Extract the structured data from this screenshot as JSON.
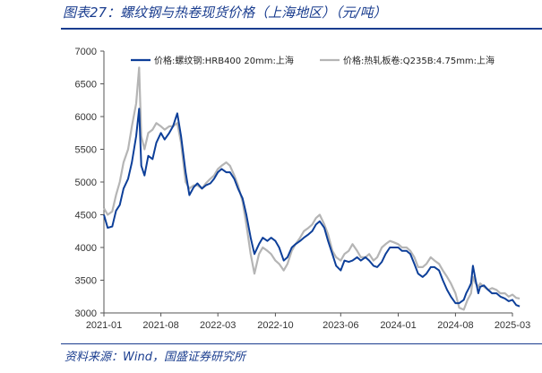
{
  "figure": {
    "title": "图表27：螺纹钢与热卷现货价格（上海地区）（元/吨）",
    "source": "资料来源：Wind，国盛证券研究所"
  },
  "chart_data": {
    "type": "line",
    "title": "图表27：螺纹钢与热卷现货价格（上海地区）（元/吨）",
    "xlabel": "",
    "ylabel": "",
    "ylim": [
      3000,
      7000
    ],
    "yticks": [
      3000,
      3500,
      4000,
      4500,
      5000,
      5500,
      6000,
      6500,
      7000
    ],
    "xticks": [
      "2021-01",
      "2021-08",
      "2022-03",
      "2022-10",
      "2023-06",
      "2024-01",
      "2024-08",
      "2025-03"
    ],
    "legend_position": "top",
    "grid": false,
    "series": [
      {
        "name": "价格:螺纹钢:HRB400 20mm:上海",
        "color": "#0d3f99",
        "points": [
          [
            "2021-01-01",
            4500
          ],
          [
            "2021-01-15",
            4300
          ],
          [
            "2021-02-01",
            4320
          ],
          [
            "2021-02-15",
            4560
          ],
          [
            "2021-03-01",
            4650
          ],
          [
            "2021-03-15",
            4900
          ],
          [
            "2021-04-01",
            5050
          ],
          [
            "2021-04-15",
            5300
          ],
          [
            "2021-05-01",
            5700
          ],
          [
            "2021-05-12",
            6120
          ],
          [
            "2021-05-20",
            5250
          ],
          [
            "2021-06-01",
            5100
          ],
          [
            "2021-06-15",
            5400
          ],
          [
            "2021-07-01",
            5350
          ],
          [
            "2021-07-15",
            5600
          ],
          [
            "2021-08-01",
            5750
          ],
          [
            "2021-08-15",
            5650
          ],
          [
            "2021-09-01",
            5750
          ],
          [
            "2021-09-15",
            5850
          ],
          [
            "2021-10-01",
            6050
          ],
          [
            "2021-10-15",
            5700
          ],
          [
            "2021-11-01",
            5150
          ],
          [
            "2021-11-15",
            4800
          ],
          [
            "2021-12-01",
            4920
          ],
          [
            "2021-12-15",
            4980
          ],
          [
            "2022-01-01",
            4900
          ],
          [
            "2022-01-15",
            4950
          ],
          [
            "2022-02-01",
            4980
          ],
          [
            "2022-02-15",
            5050
          ],
          [
            "2022-03-01",
            5150
          ],
          [
            "2022-03-15",
            5200
          ],
          [
            "2022-04-01",
            5150
          ],
          [
            "2022-04-15",
            5150
          ],
          [
            "2022-05-01",
            5050
          ],
          [
            "2022-05-15",
            4900
          ],
          [
            "2022-06-01",
            4750
          ],
          [
            "2022-06-15",
            4500
          ],
          [
            "2022-07-01",
            4150
          ],
          [
            "2022-07-15",
            3900
          ],
          [
            "2022-08-01",
            4050
          ],
          [
            "2022-08-15",
            4150
          ],
          [
            "2022-09-01",
            4100
          ],
          [
            "2022-09-15",
            4150
          ],
          [
            "2022-10-01",
            4100
          ],
          [
            "2022-10-15",
            4000
          ],
          [
            "2022-11-01",
            3800
          ],
          [
            "2022-11-15",
            3850
          ],
          [
            "2022-12-01",
            4000
          ],
          [
            "2022-12-15",
            4050
          ],
          [
            "2023-01-01",
            4100
          ],
          [
            "2023-01-15",
            4150
          ],
          [
            "2023-02-01",
            4200
          ],
          [
            "2023-02-15",
            4250
          ],
          [
            "2023-03-01",
            4350
          ],
          [
            "2023-03-15",
            4400
          ],
          [
            "2023-04-01",
            4300
          ],
          [
            "2023-04-15",
            4100
          ],
          [
            "2023-05-01",
            3900
          ],
          [
            "2023-05-15",
            3720
          ],
          [
            "2023-06-01",
            3650
          ],
          [
            "2023-06-15",
            3800
          ],
          [
            "2023-07-01",
            3780
          ],
          [
            "2023-07-15",
            3800
          ],
          [
            "2023-08-01",
            3850
          ],
          [
            "2023-08-15",
            3800
          ],
          [
            "2023-09-01",
            3850
          ],
          [
            "2023-09-15",
            3800
          ],
          [
            "2023-10-01",
            3720
          ],
          [
            "2023-10-15",
            3700
          ],
          [
            "2023-11-01",
            3780
          ],
          [
            "2023-11-15",
            3900
          ],
          [
            "2023-12-01",
            4000
          ],
          [
            "2023-12-15",
            4000
          ],
          [
            "2024-01-01",
            4000
          ],
          [
            "2024-01-15",
            3950
          ],
          [
            "2024-02-01",
            3950
          ],
          [
            "2024-02-15",
            3900
          ],
          [
            "2024-03-01",
            3750
          ],
          [
            "2024-03-15",
            3600
          ],
          [
            "2024-04-01",
            3550
          ],
          [
            "2024-04-15",
            3600
          ],
          [
            "2024-05-01",
            3700
          ],
          [
            "2024-05-15",
            3700
          ],
          [
            "2024-06-01",
            3650
          ],
          [
            "2024-06-15",
            3500
          ],
          [
            "2024-07-01",
            3350
          ],
          [
            "2024-07-15",
            3250
          ],
          [
            "2024-08-01",
            3150
          ],
          [
            "2024-08-15",
            3150
          ],
          [
            "2024-09-01",
            3200
          ],
          [
            "2024-09-10",
            3300
          ],
          [
            "2024-09-20",
            3380
          ],
          [
            "2024-09-28",
            3450
          ],
          [
            "2024-10-05",
            3720
          ],
          [
            "2024-10-15",
            3500
          ],
          [
            "2024-10-25",
            3300
          ],
          [
            "2024-11-01",
            3400
          ],
          [
            "2024-11-15",
            3420
          ],
          [
            "2024-12-01",
            3350
          ],
          [
            "2024-12-15",
            3300
          ],
          [
            "2025-01-01",
            3300
          ],
          [
            "2025-01-15",
            3250
          ],
          [
            "2025-02-01",
            3220
          ],
          [
            "2025-02-15",
            3180
          ],
          [
            "2025-03-01",
            3200
          ],
          [
            "2025-03-15",
            3120
          ],
          [
            "2025-03-28",
            3100
          ]
        ]
      },
      {
        "name": "价格:热轧板卷:Q235B:4.75mm:上海",
        "color": "#b5b5b5",
        "points": [
          [
            "2021-01-01",
            4600
          ],
          [
            "2021-01-15",
            4500
          ],
          [
            "2021-02-01",
            4550
          ],
          [
            "2021-02-15",
            4800
          ],
          [
            "2021-03-01",
            5000
          ],
          [
            "2021-03-15",
            5300
          ],
          [
            "2021-04-01",
            5500
          ],
          [
            "2021-04-15",
            5850
          ],
          [
            "2021-05-01",
            6200
          ],
          [
            "2021-05-12",
            6750
          ],
          [
            "2021-05-20",
            5700
          ],
          [
            "2021-06-01",
            5500
          ],
          [
            "2021-06-15",
            5750
          ],
          [
            "2021-07-01",
            5800
          ],
          [
            "2021-07-15",
            5900
          ],
          [
            "2021-08-01",
            5850
          ],
          [
            "2021-08-15",
            5800
          ],
          [
            "2021-09-01",
            5850
          ],
          [
            "2021-09-15",
            5850
          ],
          [
            "2021-10-01",
            5900
          ],
          [
            "2021-10-15",
            5600
          ],
          [
            "2021-11-01",
            5000
          ],
          [
            "2021-11-15",
            4900
          ],
          [
            "2021-12-01",
            4950
          ],
          [
            "2021-12-15",
            4950
          ],
          [
            "2022-01-01",
            4900
          ],
          [
            "2022-01-15",
            4980
          ],
          [
            "2022-02-01",
            5050
          ],
          [
            "2022-02-15",
            5100
          ],
          [
            "2022-03-01",
            5200
          ],
          [
            "2022-03-15",
            5250
          ],
          [
            "2022-04-01",
            5300
          ],
          [
            "2022-04-15",
            5250
          ],
          [
            "2022-05-01",
            5100
          ],
          [
            "2022-05-15",
            4950
          ],
          [
            "2022-06-01",
            4700
          ],
          [
            "2022-06-15",
            4350
          ],
          [
            "2022-07-01",
            3900
          ],
          [
            "2022-07-15",
            3600
          ],
          [
            "2022-08-01",
            3900
          ],
          [
            "2022-08-15",
            4000
          ],
          [
            "2022-09-01",
            3950
          ],
          [
            "2022-09-15",
            3900
          ],
          [
            "2022-10-01",
            3800
          ],
          [
            "2022-10-15",
            3750
          ],
          [
            "2022-11-01",
            3650
          ],
          [
            "2022-11-15",
            3750
          ],
          [
            "2022-12-01",
            3950
          ],
          [
            "2022-12-15",
            4050
          ],
          [
            "2023-01-01",
            4150
          ],
          [
            "2023-01-15",
            4250
          ],
          [
            "2023-02-01",
            4300
          ],
          [
            "2023-02-15",
            4350
          ],
          [
            "2023-03-01",
            4450
          ],
          [
            "2023-03-15",
            4500
          ],
          [
            "2023-04-01",
            4350
          ],
          [
            "2023-04-15",
            4200
          ],
          [
            "2023-05-01",
            3950
          ],
          [
            "2023-05-15",
            3850
          ],
          [
            "2023-06-01",
            3800
          ],
          [
            "2023-06-15",
            3900
          ],
          [
            "2023-07-01",
            3950
          ],
          [
            "2023-07-15",
            4050
          ],
          [
            "2023-08-01",
            3950
          ],
          [
            "2023-08-15",
            3850
          ],
          [
            "2023-09-01",
            3850
          ],
          [
            "2023-09-15",
            3900
          ],
          [
            "2023-10-01",
            3800
          ],
          [
            "2023-10-15",
            3850
          ],
          [
            "2023-11-01",
            4000
          ],
          [
            "2023-11-15",
            4050
          ],
          [
            "2023-12-01",
            4100
          ],
          [
            "2023-12-15",
            4080
          ],
          [
            "2024-01-01",
            4050
          ],
          [
            "2024-01-15",
            4000
          ],
          [
            "2024-02-01",
            4000
          ],
          [
            "2024-02-15",
            3950
          ],
          [
            "2024-03-01",
            3850
          ],
          [
            "2024-03-15",
            3700
          ],
          [
            "2024-04-01",
            3700
          ],
          [
            "2024-04-15",
            3750
          ],
          [
            "2024-05-01",
            3850
          ],
          [
            "2024-05-15",
            3800
          ],
          [
            "2024-06-01",
            3750
          ],
          [
            "2024-06-15",
            3650
          ],
          [
            "2024-07-01",
            3550
          ],
          [
            "2024-07-15",
            3450
          ],
          [
            "2024-08-01",
            3300
          ],
          [
            "2024-08-15",
            3080
          ],
          [
            "2024-09-01",
            3050
          ],
          [
            "2024-09-15",
            3200
          ],
          [
            "2024-09-28",
            3300
          ],
          [
            "2024-10-05",
            3550
          ],
          [
            "2024-10-15",
            3450
          ],
          [
            "2024-10-25",
            3400
          ],
          [
            "2024-11-01",
            3450
          ],
          [
            "2024-11-15",
            3400
          ],
          [
            "2024-12-01",
            3350
          ],
          [
            "2024-12-15",
            3380
          ],
          [
            "2025-01-01",
            3350
          ],
          [
            "2025-01-15",
            3300
          ],
          [
            "2025-02-01",
            3300
          ],
          [
            "2025-02-15",
            3250
          ],
          [
            "2025-03-01",
            3280
          ],
          [
            "2025-03-15",
            3230
          ],
          [
            "2025-03-28",
            3220
          ]
        ]
      }
    ]
  }
}
